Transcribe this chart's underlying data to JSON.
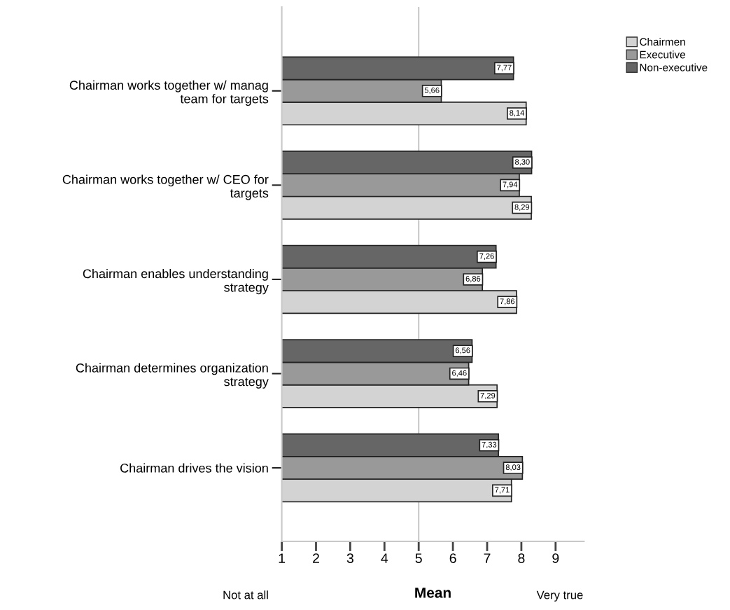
{
  "chart_data": {
    "type": "bar",
    "orientation": "horizontal",
    "xlabel": "Mean",
    "categories": [
      "Chairman works together w/ manag\nteam for targets",
      "Chairman works together w/ CEO for\ntargets",
      "Chairman enables understanding\nstrategy",
      "Chairman determines organization\nstrategy",
      "Chairman drives the vision"
    ],
    "series": [
      {
        "name": "Chairmen",
        "color": "#d3d3d3",
        "values": [
          8.14,
          8.29,
          7.86,
          7.29,
          7.71
        ],
        "value_labels": [
          "8,14",
          "8,29",
          "7,86",
          "7,29",
          "7,71"
        ]
      },
      {
        "name": "Executive",
        "color": "#999999",
        "values": [
          5.66,
          7.94,
          6.86,
          6.46,
          8.03
        ],
        "value_labels": [
          "5,66",
          "7,94",
          "6,86",
          "6,46",
          "8,03"
        ]
      },
      {
        "name": "Non-executive",
        "color": "#666666",
        "values": [
          7.77,
          8.3,
          7.26,
          6.56,
          7.33
        ],
        "value_labels": [
          "7,77",
          "8,30",
          "7,26",
          "6,56",
          "7,33"
        ]
      }
    ],
    "xlim": [
      1,
      9.83
    ],
    "xticks": [
      1,
      2,
      3,
      4,
      5,
      6,
      7,
      8,
      9
    ],
    "ref_lines": [
      {
        "axis": "x",
        "value": 5,
        "color": "#c8c8c8"
      }
    ],
    "annotations": [
      "Not at all",
      "Very true"
    ],
    "legend": "top right",
    "grid": false
  }
}
